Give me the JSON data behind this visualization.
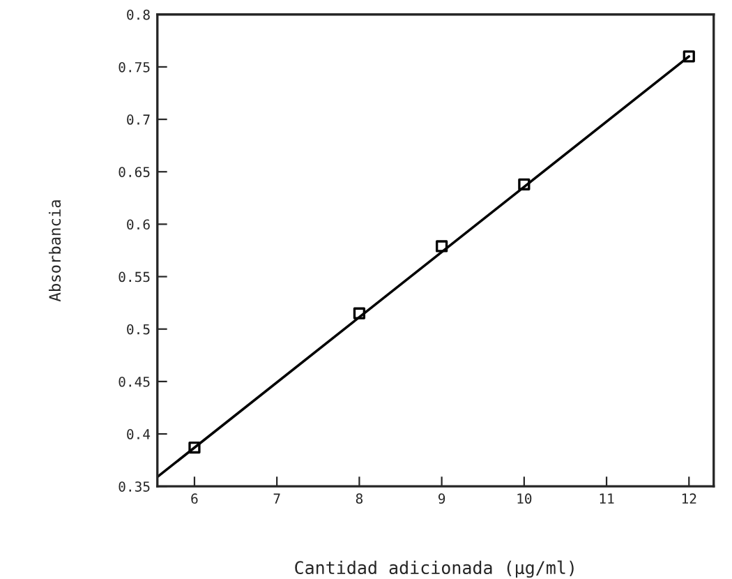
{
  "chart_data": {
    "type": "line",
    "xlabel": "Cantidad adicionada (μg/ml)",
    "ylabel": "Absorbancia",
    "xlim": [
      5.55,
      12.3
    ],
    "xticks": [
      6,
      7,
      8,
      9,
      10,
      11,
      12
    ],
    "ylim": [
      0.35,
      0.8
    ],
    "yticks": [
      0.35,
      0.4,
      0.45,
      0.5,
      0.55,
      0.6,
      0.65,
      0.7,
      0.75,
      0.8
    ],
    "grid": false,
    "series": [
      {
        "type": "scatter",
        "color": "#000000",
        "marker": "square",
        "x": [
          6,
          8,
          9,
          10,
          12
        ],
        "values": [
          0.387,
          0.515,
          0.579,
          0.638,
          0.76
        ]
      },
      {
        "color": "#000000",
        "marker": "none",
        "line_style": "solid",
        "x": [
          5.55,
          12
        ],
        "values": [
          0.359,
          0.76
        ]
      }
    ]
  }
}
